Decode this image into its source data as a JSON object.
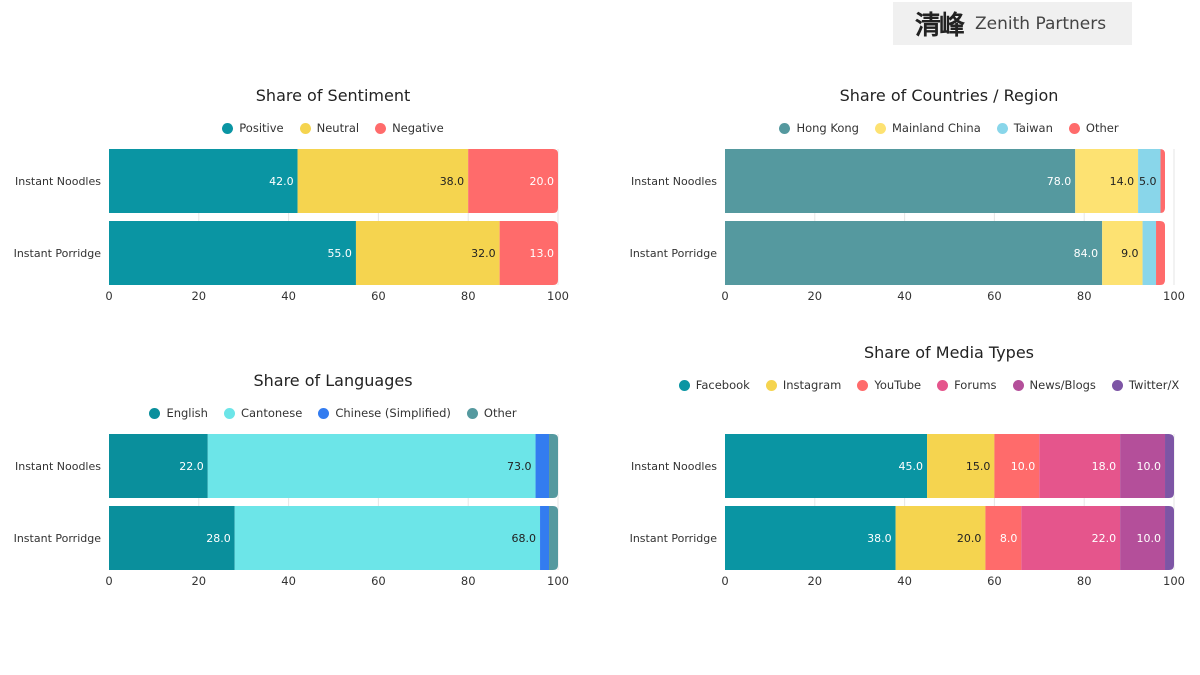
{
  "logo": {
    "cjk": "清峰",
    "text": "Zenith Partners"
  },
  "chart_data": [
    {
      "id": "sentiment",
      "type": "bar",
      "orientation": "horizontal-stacked",
      "title": "Share of Sentiment",
      "categories": [
        "Instant Noodles",
        "Instant Porridge"
      ],
      "series": [
        {
          "name": "Positive",
          "color": "#0a95a3",
          "label_color": "#ffffff",
          "values": [
            42,
            55
          ]
        },
        {
          "name": "Neutral",
          "color": "#f5d44f",
          "label_color": "#222222",
          "values": [
            38,
            32
          ]
        },
        {
          "name": "Negative",
          "color": "#ff6b6b",
          "label_color": "#ffffff",
          "values": [
            20,
            13
          ]
        }
      ],
      "xlim": [
        0,
        100
      ],
      "xticks": [
        0,
        20,
        40,
        60,
        80,
        100
      ],
      "grid": true,
      "legend": "top-center"
    },
    {
      "id": "countries",
      "type": "bar",
      "orientation": "horizontal-stacked",
      "title": "Share of Countries / Region",
      "categories": [
        "Instant Noodles",
        "Instant Porridge"
      ],
      "series": [
        {
          "name": "Hong Kong",
          "color": "#55999f",
          "label_color": "#ffffff",
          "values": [
            78,
            84
          ]
        },
        {
          "name": "Mainland China",
          "color": "#fde272",
          "label_color": "#222222",
          "values": [
            14,
            9
          ]
        },
        {
          "name": "Taiwan",
          "color": "#89d6ea",
          "label_color": "#222222",
          "values": [
            5,
            3
          ]
        },
        {
          "name": "Other",
          "color": "#ff6b6b",
          "label_color": "#ffffff",
          "values": [
            1,
            2
          ]
        }
      ],
      "label_min": 4,
      "xlim": [
        0,
        100
      ],
      "xticks": [
        0,
        20,
        40,
        60,
        80,
        100
      ],
      "grid": true,
      "legend": "top-center"
    },
    {
      "id": "languages",
      "type": "bar",
      "orientation": "horizontal-stacked",
      "title": "Share of Languages",
      "categories": [
        "Instant Noodles",
        "Instant Porridge"
      ],
      "series": [
        {
          "name": "English",
          "color": "#0a8f9c",
          "label_color": "#ffffff",
          "values": [
            22,
            28
          ]
        },
        {
          "name": "Cantonese",
          "color": "#6ce5e8",
          "label_color": "#222222",
          "values": [
            73,
            68
          ]
        },
        {
          "name": "Chinese (Simplified)",
          "color": "#337cf0",
          "label_color": "#ffffff",
          "values": [
            3,
            2
          ]
        },
        {
          "name": "Other",
          "color": "#55999f",
          "label_color": "#ffffff",
          "values": [
            2,
            2
          ]
        }
      ],
      "label_min": 4,
      "xlim": [
        0,
        100
      ],
      "xticks": [
        0,
        20,
        40,
        60,
        80,
        100
      ],
      "grid": true,
      "legend": "top-center"
    },
    {
      "id": "media",
      "type": "bar",
      "orientation": "horizontal-stacked",
      "title": "Share of Media Types",
      "categories": [
        "Instant Noodles",
        "Instant Porridge"
      ],
      "series": [
        {
          "name": "Facebook",
          "color": "#0a95a3",
          "label_color": "#ffffff",
          "values": [
            45,
            38
          ]
        },
        {
          "name": "Instagram",
          "color": "#f5d44f",
          "label_color": "#222222",
          "values": [
            15,
            20
          ]
        },
        {
          "name": "YouTube",
          "color": "#ff6b6b",
          "label_color": "#ffffff",
          "values": [
            10,
            8
          ]
        },
        {
          "name": "Forums",
          "color": "#e5558c",
          "label_color": "#ffffff",
          "values": [
            18,
            22
          ]
        },
        {
          "name": "News/Blogs",
          "color": "#b44f9a",
          "label_color": "#ffffff",
          "values": [
            10,
            10
          ]
        },
        {
          "name": "Twitter/X",
          "color": "#7d55a5",
          "label_color": "#ffffff",
          "values": [
            2,
            2
          ]
        }
      ],
      "label_min": 4,
      "xlim": [
        0,
        100
      ],
      "xticks": [
        0,
        20,
        40,
        60,
        80,
        100
      ],
      "grid": true,
      "legend": "top-center"
    }
  ]
}
